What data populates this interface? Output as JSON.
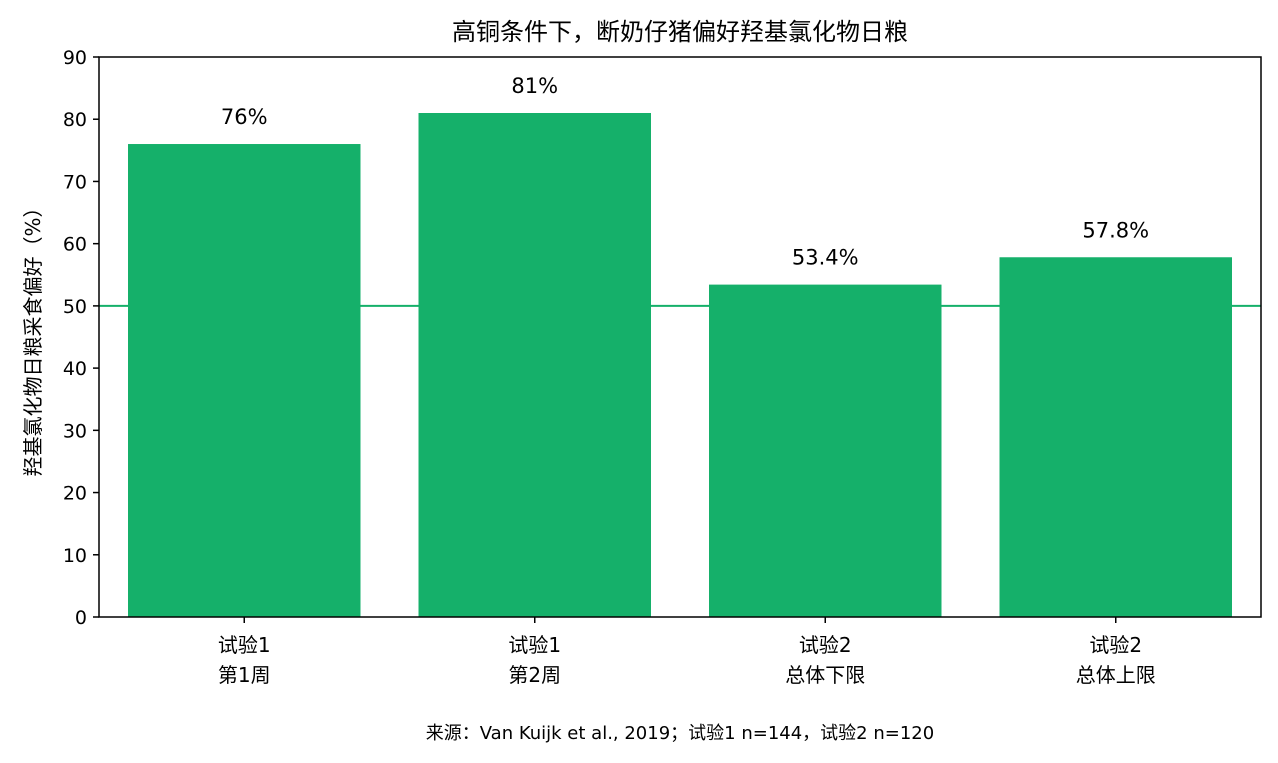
{
  "chart_data": {
    "type": "bar",
    "title": "高铜条件下，断奶仔猪偏好羟基氯化物日粮",
    "xlabel": "",
    "ylabel": "羟基氯化物日粮采食偏好（%）",
    "categories": [
      [
        "试验1",
        "第1周"
      ],
      [
        "试验1",
        "第2周"
      ],
      [
        "试验2",
        "总体下限"
      ],
      [
        "试验2",
        "总体上限"
      ]
    ],
    "values": [
      76,
      81,
      53.4,
      57.8
    ],
    "data_labels": [
      "76%",
      "81%",
      "53.4%",
      "57.8%"
    ],
    "ylim": [
      0,
      90
    ],
    "yticks": [
      0,
      10,
      20,
      30,
      40,
      50,
      60,
      70,
      80,
      90
    ],
    "reference_line": 50,
    "grid": false,
    "colors": {
      "bar": "#15b06a",
      "reference_line": "#15b06a",
      "axis": "#000000"
    },
    "source_note": "来源：Van Kuijk et al., 2019；试验1 n=144，试验2 n=120"
  }
}
